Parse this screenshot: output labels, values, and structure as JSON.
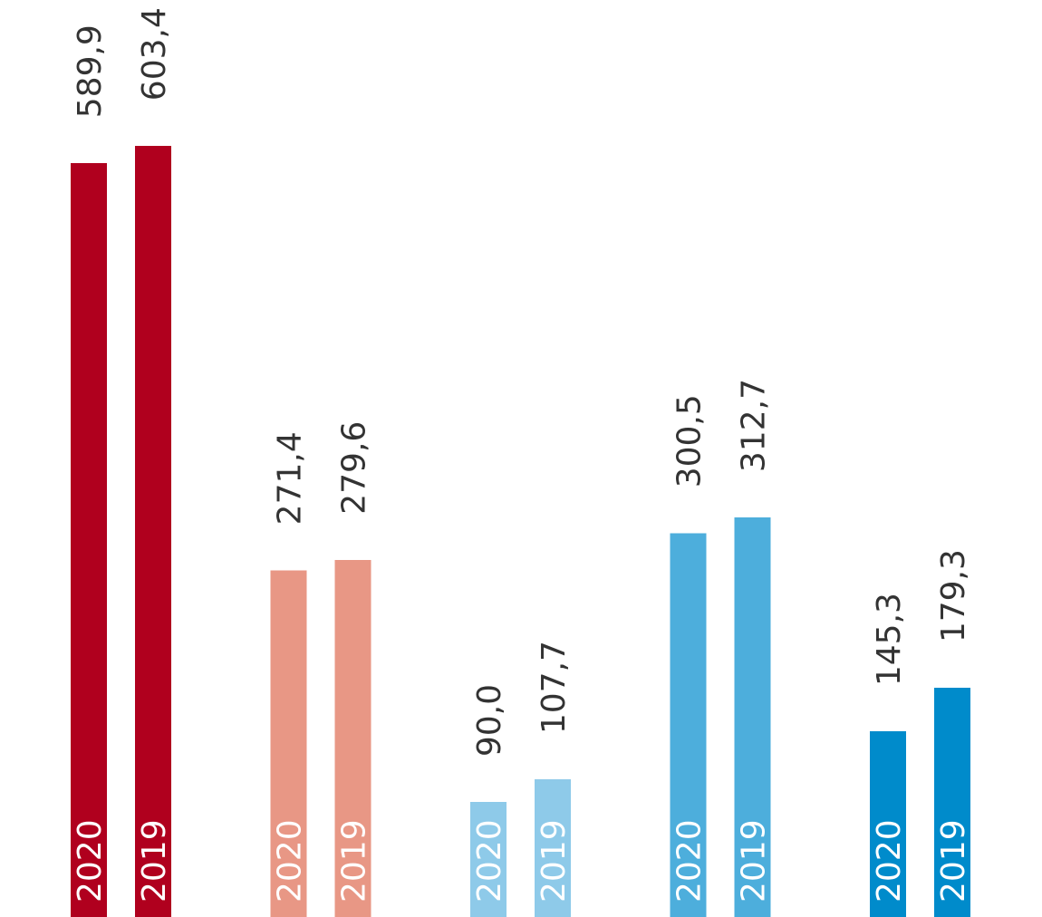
{
  "chart_data": {
    "type": "bar",
    "orientation": "vertical",
    "grouped": true,
    "decimal_separator": ",",
    "groups": [
      {
        "color": "#B0001E",
        "bars": [
          {
            "year": "2020",
            "value": 589.9,
            "value_label": "589,9"
          },
          {
            "year": "2019",
            "value": 603.4,
            "value_label": "603,4"
          }
        ]
      },
      {
        "color": "#E89785",
        "bars": [
          {
            "year": "2020",
            "value": 271.4,
            "value_label": "271,4"
          },
          {
            "year": "2019",
            "value": 279.6,
            "value_label": "279,6"
          }
        ]
      },
      {
        "color": "#8ECAE9",
        "bars": [
          {
            "year": "2020",
            "value": 90.0,
            "value_label": "90,0"
          },
          {
            "year": "2019",
            "value": 107.7,
            "value_label": "107,7"
          }
        ]
      },
      {
        "color": "#4DAEDC",
        "bars": [
          {
            "year": "2020",
            "value": 300.5,
            "value_label": "300,5"
          },
          {
            "year": "2019",
            "value": 312.7,
            "value_label": "312,7"
          }
        ]
      },
      {
        "color": "#008BCB",
        "bars": [
          {
            "year": "2020",
            "value": 145.3,
            "value_label": "145,3"
          },
          {
            "year": "2019",
            "value": 179.3,
            "value_label": "179,3"
          }
        ]
      }
    ],
    "axes_visible": false,
    "grid": false,
    "legend": "none"
  }
}
